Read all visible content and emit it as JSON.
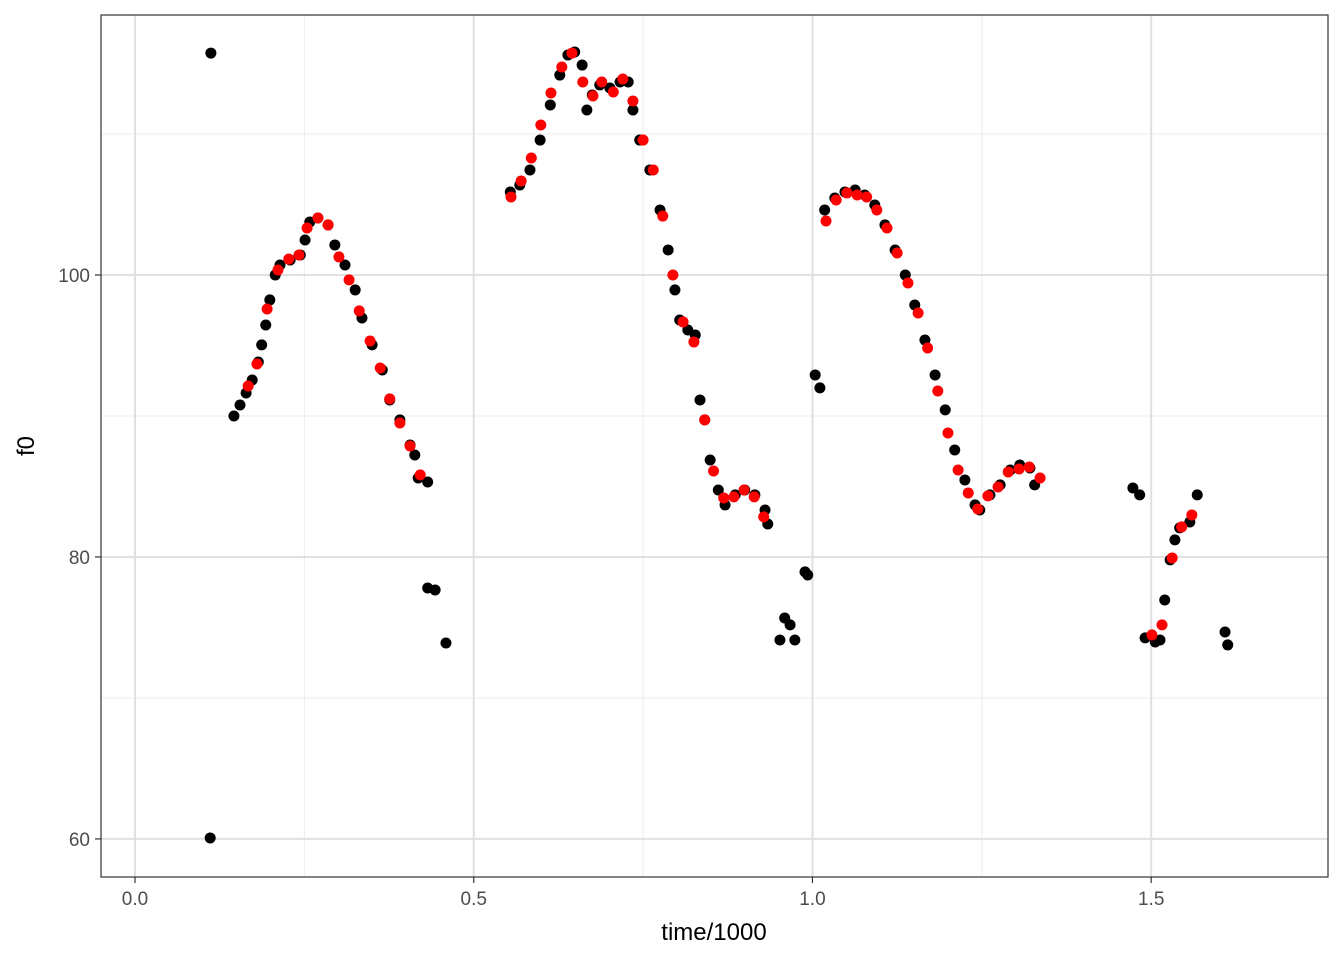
{
  "chart_data": {
    "type": "scatter",
    "xlabel": "time/1000",
    "ylabel": "f0",
    "xlim": [
      -0.0502,
      1.761
    ],
    "ylim": [
      57.3,
      118.44
    ],
    "xticks": [
      {
        "value": 0,
        "label": "0.0"
      },
      0.5,
      {
        "value": 1,
        "label": "1.0"
      },
      1.5
    ],
    "yticks": [
      60,
      80,
      100
    ],
    "x_minor_grid": [
      0.25,
      0.75,
      1.25
    ],
    "y_minor_grid": [
      70,
      90,
      110
    ],
    "grid": true,
    "series": [
      {
        "color": "#000000",
        "x": [
          0.112,
          0.111,
          0.146,
          0.155,
          0.164,
          0.173,
          0.182,
          0.187,
          0.193,
          0.199,
          0.207,
          0.214,
          0.229,
          0.244,
          0.251,
          0.258,
          0.27,
          0.285,
          0.295,
          0.31,
          0.325,
          0.335,
          0.35,
          0.365,
          0.376,
          0.391,
          0.406,
          0.413,
          0.418,
          0.432,
          0.432,
          0.443,
          0.459,
          0.554,
          0.568,
          0.583,
          0.598,
          0.613,
          0.627,
          0.639,
          0.649,
          0.66,
          0.667,
          0.675,
          0.686,
          0.701,
          0.716,
          0.728,
          0.735,
          0.745,
          0.76,
          0.775,
          0.787,
          0.797,
          0.804,
          0.816,
          0.827,
          0.834,
          0.841,
          0.849,
          0.861,
          0.871,
          0.886,
          0.9,
          0.915,
          0.93,
          0.934,
          0.952,
          0.959,
          0.967,
          0.974,
          0.989,
          0.993,
          1.004,
          1.011,
          1.018,
          1.033,
          1.048,
          1.063,
          1.077,
          1.092,
          1.107,
          1.122,
          1.137,
          1.151,
          1.166,
          1.181,
          1.196,
          1.21,
          1.225,
          1.24,
          1.247,
          1.262,
          1.277,
          1.292,
          1.306,
          1.321,
          1.328,
          1.473,
          1.483,
          1.491,
          1.506,
          1.513,
          1.52,
          1.528,
          1.535,
          1.542,
          1.557,
          1.568,
          1.609,
          1.613
        ],
        "values": [
          115.74,
          60.07,
          90.0,
          90.78,
          91.63,
          92.55,
          93.83,
          95.04,
          96.45,
          98.23,
          100,
          100.71,
          101.06,
          101.42,
          102.48,
          103.76,
          104.04,
          103.55,
          102.13,
          100.71,
          98.94,
          96.95,
          95.04,
          93.26,
          91.13,
          89.72,
          87.94,
          87.23,
          85.6,
          85.32,
          77.8,
          77.66,
          73.9,
          105.89,
          106.38,
          107.45,
          109.57,
          112.06,
          114.18,
          115.6,
          115.82,
          114.89,
          111.7,
          112.77,
          113.48,
          113.26,
          113.69,
          113.69,
          111.7,
          109.57,
          107.45,
          104.61,
          101.77,
          98.94,
          96.81,
          96.1,
          95.74,
          91.13,
          89.72,
          86.88,
          84.75,
          83.69,
          84.4,
          84.75,
          84.4,
          83.33,
          82.34,
          74.11,
          75.67,
          75.18,
          74.11,
          78.94,
          78.72,
          92.91,
          91.99,
          104.61,
          105.46,
          105.89,
          106.03,
          105.67,
          104.96,
          103.55,
          101.77,
          100,
          97.87,
          95.39,
          92.91,
          90.43,
          87.59,
          85.46,
          83.69,
          83.33,
          84.4,
          85.11,
          86.17,
          86.52,
          86.31,
          85.11,
          84.89,
          84.4,
          74.26,
          73.97,
          74.11,
          76.95,
          79.79,
          81.21,
          82.06,
          82.48,
          84.4,
          74.68,
          73.76
        ]
      },
      {
        "color": "#ff0000",
        "x": [
          0.167,
          0.18,
          0.195,
          0.211,
          0.227,
          0.242,
          0.254,
          0.27,
          0.285,
          0.301,
          0.316,
          0.331,
          0.347,
          0.362,
          0.376,
          0.391,
          0.406,
          0.421,
          0.555,
          0.57,
          0.585,
          0.599,
          0.614,
          0.63,
          0.645,
          0.661,
          0.676,
          0.689,
          0.706,
          0.72,
          0.735,
          0.75,
          0.765,
          0.779,
          0.794,
          0.809,
          0.825,
          0.841,
          0.854,
          0.869,
          0.884,
          0.899,
          0.914,
          0.928,
          1.02,
          1.035,
          1.051,
          1.066,
          1.08,
          1.095,
          1.11,
          1.125,
          1.141,
          1.156,
          1.17,
          1.185,
          1.2,
          1.215,
          1.23,
          1.244,
          1.259,
          1.274,
          1.289,
          1.305,
          1.32,
          1.336,
          1.501,
          1.516,
          1.531,
          1.545,
          1.56
        ],
        "values": [
          92.13,
          93.69,
          97.59,
          100.35,
          101.13,
          101.42,
          103.33,
          104.04,
          103.55,
          101.28,
          99.65,
          97.45,
          95.32,
          93.4,
          91.21,
          89.5,
          87.87,
          85.82,
          105.53,
          106.67,
          108.3,
          110.64,
          112.91,
          114.75,
          115.74,
          113.69,
          112.7,
          113.69,
          112.98,
          113.9,
          112.34,
          109.57,
          107.45,
          104.18,
          100,
          96.67,
          95.25,
          89.72,
          86.1,
          84.18,
          84.26,
          84.75,
          84.26,
          82.84,
          103.83,
          105.32,
          105.82,
          105.67,
          105.53,
          104.61,
          103.33,
          101.56,
          99.43,
          97.3,
          94.82,
          91.77,
          88.79,
          86.17,
          84.54,
          83.4,
          84.33,
          84.96,
          86.03,
          86.24,
          86.38,
          85.6,
          74.47,
          75.18,
          79.93,
          82.13,
          82.98
        ]
      }
    ]
  }
}
